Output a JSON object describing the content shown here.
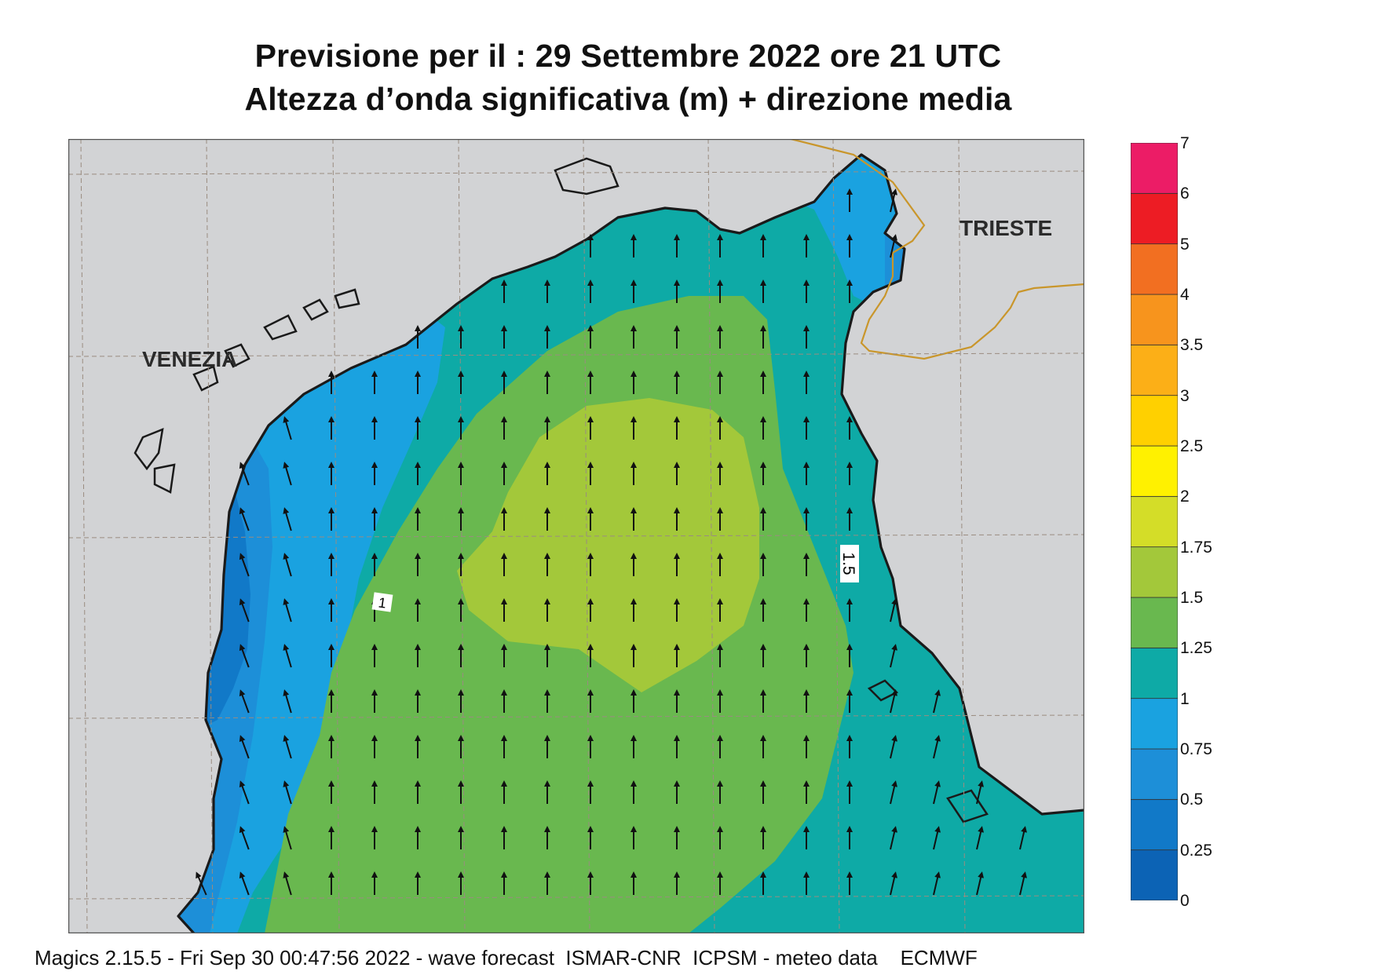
{
  "title": {
    "line1": "Previsione per il  :  29 Settembre 2022   ore 21 UTC",
    "line2": "Altezza d’onda significativa (m) + direzione media"
  },
  "map": {
    "cities": [
      {
        "id": "venezia",
        "label": "VENEZIA"
      },
      {
        "id": "trieste",
        "label": "TRIESTE"
      }
    ],
    "contour_labels": [
      "1",
      "1.5"
    ],
    "arrow_direction": "north",
    "colors": {
      "land": "#d2d3d5",
      "coast": "#1a1a1a",
      "border": "#c9962b",
      "grid": "#9a8c80"
    }
  },
  "legend": {
    "ticks": [
      "0",
      "0.25",
      "0.5",
      "0.75",
      "1",
      "1.25",
      "1.5",
      "1.75",
      "2",
      "2.5",
      "3",
      "3.5",
      "4",
      "5",
      "6",
      "7"
    ],
    "colors": [
      "#0c63b5",
      "#1179c8",
      "#1d8fd8",
      "#1aa2e0",
      "#0eaaa6",
      "#69b84f",
      "#a3c83a",
      "#d4dd28",
      "#fff100",
      "#ffd000",
      "#fcaf17",
      "#f7941d",
      "#f26f21",
      "#ed1c24",
      "#ec1c66"
    ]
  },
  "footer": "Magics 2.15.5 - Fri Sep 30 00:47:56 2022 - wave forecast  ISMAR-CNR  ICPSM - meteo data    ECMWF"
}
